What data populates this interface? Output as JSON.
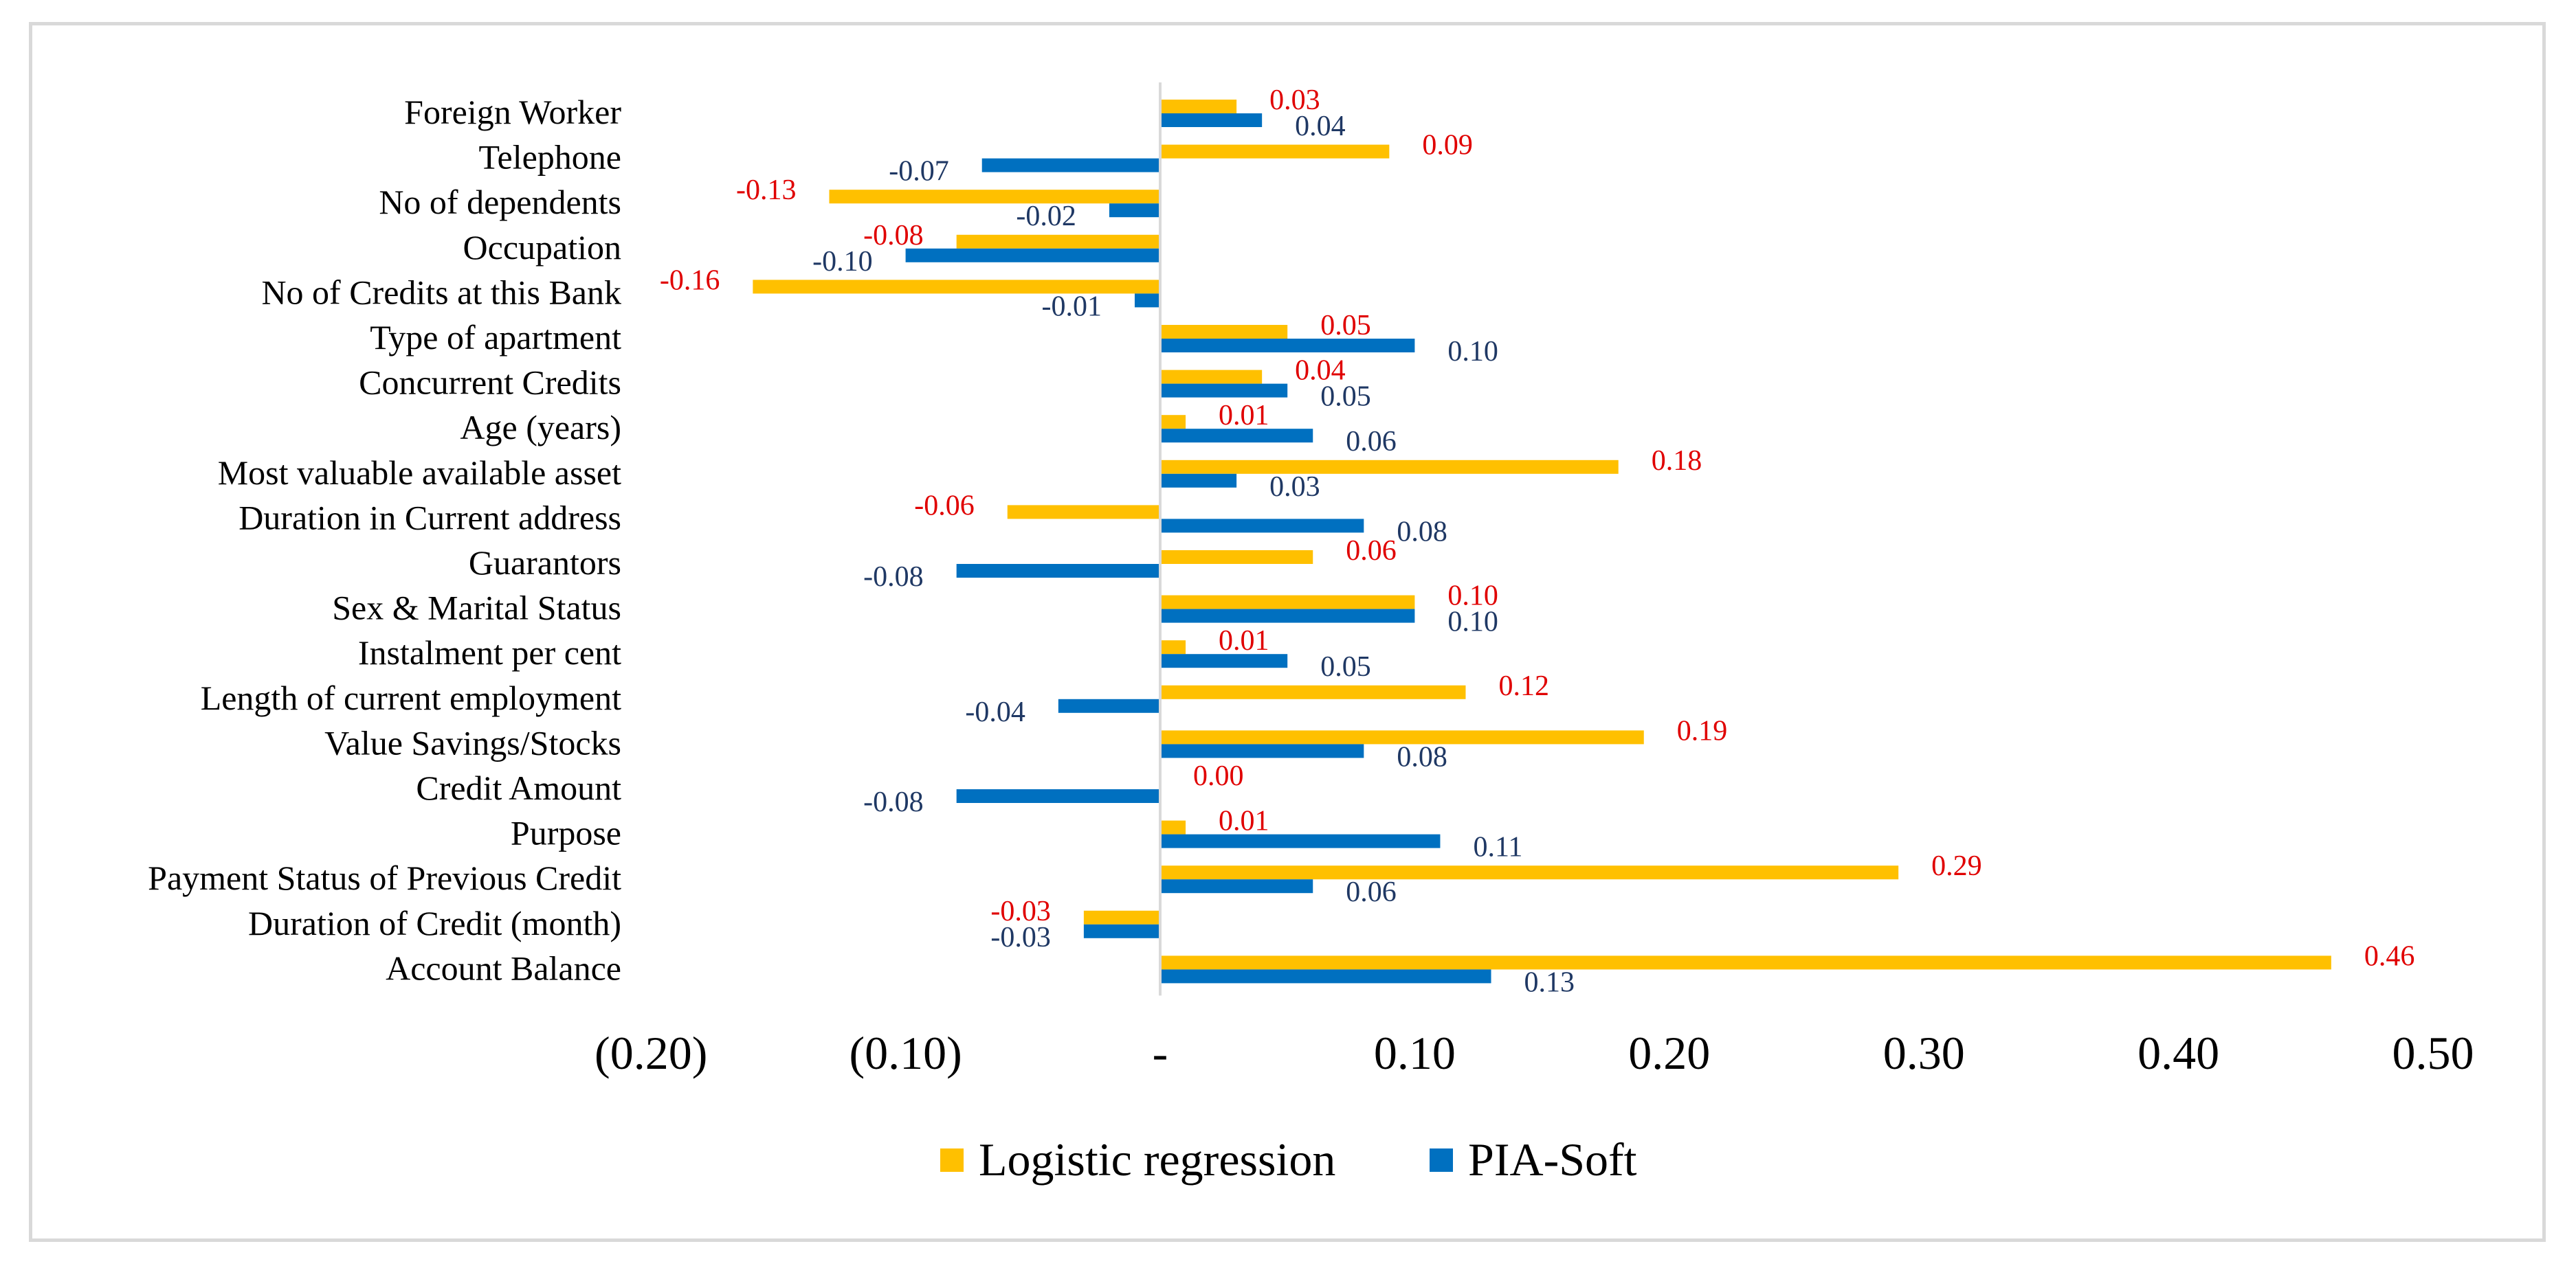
{
  "chart_data": {
    "type": "bar",
    "orientation": "horizontal",
    "title": "",
    "xlabel": "",
    "ylabel": "",
    "xlim": [
      -0.2,
      0.5
    ],
    "x_ticks": [
      -0.2,
      -0.1,
      0,
      0.1,
      0.2,
      0.3,
      0.4,
      0.5
    ],
    "x_tick_labels": [
      "(0.20)",
      "(0.10)",
      "-",
      "0.10",
      "0.20",
      "0.30",
      "0.40",
      "0.50"
    ],
    "grid": false,
    "legend_position": "bottom",
    "categories": [
      "Foreign Worker",
      "Telephone",
      "No of dependents",
      "Occupation",
      "No of Credits at this Bank",
      "Type of apartment",
      "Concurrent Credits",
      "Age (years)",
      "Most valuable available asset",
      "Duration in Current address",
      "Guarantors",
      "Sex & Marital Status",
      "Instalment per cent",
      "Length of current employment",
      "Value Savings/Stocks",
      "Credit Amount",
      "Purpose",
      "Payment Status of Previous Credit",
      "Duration of Credit (month)",
      "Account Balance"
    ],
    "series": [
      {
        "name": "Logistic regression",
        "color": "#FFC000",
        "label_color": "#E00000",
        "values": [
          0.03,
          0.09,
          -0.13,
          -0.08,
          -0.16,
          0.05,
          0.04,
          0.01,
          0.18,
          -0.06,
          0.06,
          0.1,
          0.01,
          0.12,
          0.19,
          0.0,
          0.01,
          0.29,
          -0.03,
          0.46
        ],
        "labels": [
          "0.03",
          "0.09",
          "-0.13",
          "-0.08",
          "-0.16",
          "0.05",
          "0.04",
          "0.01",
          "0.18",
          "-0.06",
          "0.06",
          "0.10",
          "0.01",
          "0.12",
          "0.19",
          "0.00",
          "0.01",
          "0.29",
          "-0.03",
          "0.46"
        ]
      },
      {
        "name": "PIA-Soft",
        "color": "#0070C0",
        "label_color": "#1F3864",
        "values": [
          0.04,
          -0.07,
          -0.02,
          -0.1,
          -0.01,
          0.1,
          0.05,
          0.06,
          0.03,
          0.08,
          -0.08,
          0.1,
          0.05,
          -0.04,
          0.08,
          -0.08,
          0.11,
          0.06,
          -0.03,
          0.13
        ],
        "labels": [
          "0.04",
          "-0.07",
          "-0.02",
          "-0.10",
          "-0.01",
          "0.10",
          "0.05",
          "0.06",
          "0.03",
          "0.08",
          "-0.08",
          "0.10",
          "0.05",
          "-0.04",
          "0.08",
          "-0.08",
          "0.11",
          "0.06",
          "-0.03",
          "0.13"
        ]
      }
    ],
    "axis_color": "#d9d9d9"
  }
}
